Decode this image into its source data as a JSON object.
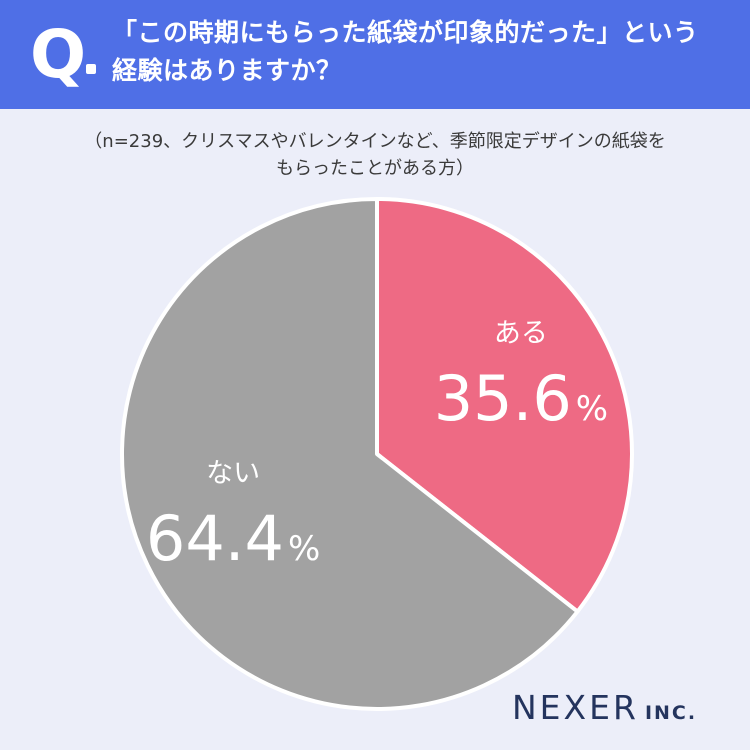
{
  "header": {
    "q_label": "Q",
    "question_line1": "「この時期にもらった紙袋が印象的だった」という",
    "question_line2": "経験はありますか？"
  },
  "note": {
    "line1": "（n=239、クリスマスやバレンタインなど、季節限定デザインの紙袋を",
    "line2": "もらったことがある方）"
  },
  "brand": {
    "name": "NEXER",
    "suffix": "INC."
  },
  "colors": {
    "header_bg": "#4f6fe6",
    "page_bg": "#eceef9",
    "yes": "#ee6a84",
    "no": "#a2a2a2"
  },
  "chart_data": {
    "type": "pie",
    "title": "",
    "slices": [
      {
        "label": "ある",
        "value": 35.6,
        "display": "35.6",
        "unit": "%",
        "color": "#ee6a84"
      },
      {
        "label": "ない",
        "value": 64.4,
        "display": "64.4",
        "unit": "%",
        "color": "#a2a2a2"
      }
    ]
  }
}
